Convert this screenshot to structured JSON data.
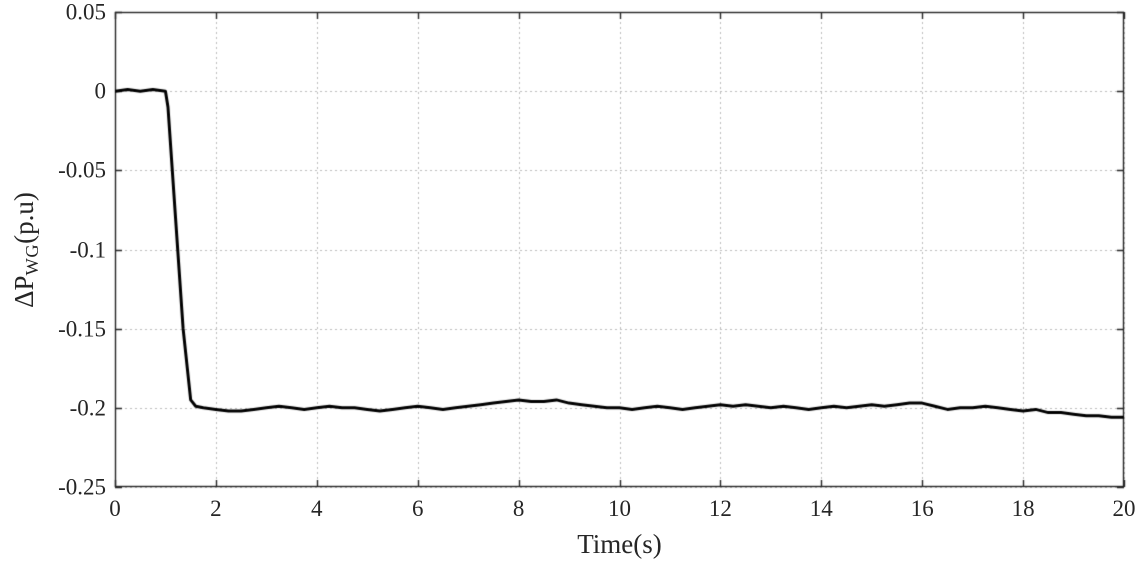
{
  "chart_data": {
    "type": "line",
    "title": "",
    "xlabel": "Time(s)",
    "ylabel": "ΔP_WG(p.u)",
    "ylabel_parts": {
      "prefix": "ΔP",
      "subscript": "WG",
      "suffix": "(p.u)"
    },
    "xlim": [
      0,
      20
    ],
    "ylim": [
      -0.25,
      0.05
    ],
    "xticks": [
      0,
      2,
      4,
      6,
      8,
      10,
      12,
      14,
      16,
      18,
      20
    ],
    "xtick_labels": [
      "0",
      "2",
      "4",
      "6",
      "8",
      "10",
      "12",
      "14",
      "16",
      "18",
      "20"
    ],
    "yticks": [
      0.05,
      0,
      -0.05,
      -0.1,
      -0.15,
      -0.2,
      -0.25
    ],
    "ytick_labels": [
      "0.05",
      "0",
      "-0.05",
      "-0.1",
      "-0.15",
      "-0.2",
      "-0.25"
    ],
    "grid": true,
    "legend": null,
    "colors": {
      "line": "#000000",
      "grid": "#bdbdbd",
      "axis": "#262626",
      "background": "#ffffff"
    },
    "line_width": 3,
    "series": [
      {
        "name": "ΔP_WG",
        "points": [
          [
            0,
            0.0
          ],
          [
            0.25,
            0.001
          ],
          [
            0.5,
            0.0
          ],
          [
            0.75,
            0.001
          ],
          [
            1.0,
            0.0
          ],
          [
            1.05,
            -0.01
          ],
          [
            1.2,
            -0.08
          ],
          [
            1.35,
            -0.15
          ],
          [
            1.5,
            -0.195
          ],
          [
            1.6,
            -0.199
          ],
          [
            1.75,
            -0.2
          ],
          [
            2.0,
            -0.201
          ],
          [
            2.25,
            -0.202
          ],
          [
            2.5,
            -0.202
          ],
          [
            2.75,
            -0.201
          ],
          [
            3.0,
            -0.2
          ],
          [
            3.25,
            -0.199
          ],
          [
            3.5,
            -0.2
          ],
          [
            3.75,
            -0.201
          ],
          [
            4.0,
            -0.2
          ],
          [
            4.25,
            -0.199
          ],
          [
            4.5,
            -0.2
          ],
          [
            4.75,
            -0.2
          ],
          [
            5.0,
            -0.201
          ],
          [
            5.25,
            -0.202
          ],
          [
            5.5,
            -0.201
          ],
          [
            5.75,
            -0.2
          ],
          [
            6.0,
            -0.199
          ],
          [
            6.25,
            -0.2
          ],
          [
            6.5,
            -0.201
          ],
          [
            6.75,
            -0.2
          ],
          [
            7.0,
            -0.199
          ],
          [
            7.25,
            -0.198
          ],
          [
            7.5,
            -0.197
          ],
          [
            7.75,
            -0.196
          ],
          [
            8.0,
            -0.195
          ],
          [
            8.25,
            -0.196
          ],
          [
            8.5,
            -0.196
          ],
          [
            8.75,
            -0.195
          ],
          [
            9.0,
            -0.197
          ],
          [
            9.25,
            -0.198
          ],
          [
            9.5,
            -0.199
          ],
          [
            9.75,
            -0.2
          ],
          [
            10.0,
            -0.2
          ],
          [
            10.25,
            -0.201
          ],
          [
            10.5,
            -0.2
          ],
          [
            10.75,
            -0.199
          ],
          [
            11.0,
            -0.2
          ],
          [
            11.25,
            -0.201
          ],
          [
            11.5,
            -0.2
          ],
          [
            11.75,
            -0.199
          ],
          [
            12.0,
            -0.198
          ],
          [
            12.25,
            -0.199
          ],
          [
            12.5,
            -0.198
          ],
          [
            12.75,
            -0.199
          ],
          [
            13.0,
            -0.2
          ],
          [
            13.25,
            -0.199
          ],
          [
            13.5,
            -0.2
          ],
          [
            13.75,
            -0.201
          ],
          [
            14.0,
            -0.2
          ],
          [
            14.25,
            -0.199
          ],
          [
            14.5,
            -0.2
          ],
          [
            14.75,
            -0.199
          ],
          [
            15.0,
            -0.198
          ],
          [
            15.25,
            -0.199
          ],
          [
            15.5,
            -0.198
          ],
          [
            15.75,
            -0.197
          ],
          [
            16.0,
            -0.197
          ],
          [
            16.25,
            -0.199
          ],
          [
            16.5,
            -0.201
          ],
          [
            16.75,
            -0.2
          ],
          [
            17.0,
            -0.2
          ],
          [
            17.25,
            -0.199
          ],
          [
            17.5,
            -0.2
          ],
          [
            17.75,
            -0.201
          ],
          [
            18.0,
            -0.202
          ],
          [
            18.25,
            -0.201
          ],
          [
            18.5,
            -0.203
          ],
          [
            18.75,
            -0.203
          ],
          [
            19.0,
            -0.204
          ],
          [
            19.25,
            -0.205
          ],
          [
            19.5,
            -0.205
          ],
          [
            19.75,
            -0.206
          ],
          [
            20.0,
            -0.206
          ]
        ]
      }
    ]
  }
}
